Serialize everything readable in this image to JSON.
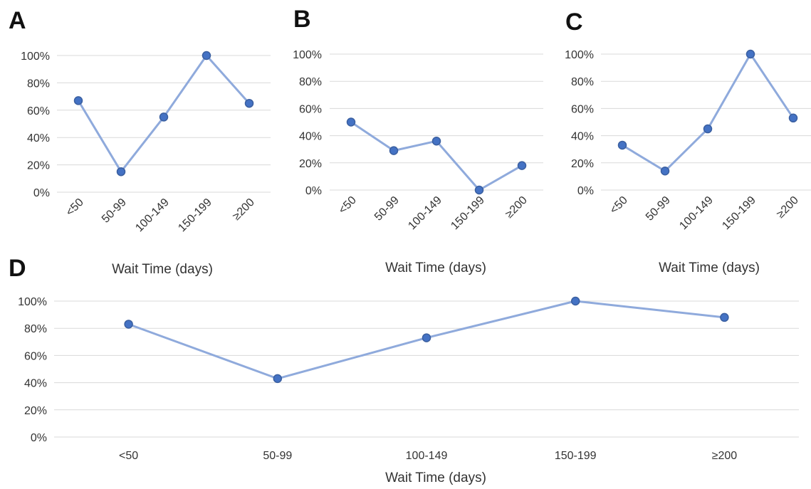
{
  "colors": {
    "line": "#8faadc",
    "marker": "#4472c4",
    "marker_stroke": "#3a5fa0",
    "grid": "#d9d9d9"
  },
  "chart_data": [
    {
      "panel": "A",
      "type": "line",
      "categories": [
        "<50",
        "50-99",
        "100-149",
        "150-199",
        "≥200"
      ],
      "values": [
        67,
        15,
        55,
        100,
        65
      ],
      "ylim": [
        0,
        100
      ],
      "yticks": [
        "0%",
        "20%",
        "40%",
        "60%",
        "80%",
        "100%"
      ],
      "xlabel": "Wait Time (days)",
      "ylabel": "",
      "grid": true
    },
    {
      "panel": "B",
      "type": "line",
      "categories": [
        "<50",
        "50-99",
        "100-149",
        "150-199",
        "≥200"
      ],
      "values": [
        50,
        29,
        36,
        0,
        18
      ],
      "ylim": [
        0,
        100
      ],
      "yticks": [
        "0%",
        "20%",
        "40%",
        "60%",
        "80%",
        "100%"
      ],
      "xlabel": "Wait Time (days)",
      "ylabel": "",
      "grid": true
    },
    {
      "panel": "C",
      "type": "line",
      "categories": [
        "<50",
        "50-99",
        "100-149",
        "150-199",
        "≥200"
      ],
      "values": [
        33,
        14,
        45,
        100,
        53
      ],
      "ylim": [
        0,
        100
      ],
      "yticks": [
        "0%",
        "20%",
        "40%",
        "60%",
        "80%",
        "100%"
      ],
      "xlabel": "Wait Time (days)",
      "ylabel": "",
      "grid": true
    },
    {
      "panel": "D",
      "type": "line",
      "categories": [
        "<50",
        "50-99",
        "100-149",
        "150-199",
        "≥200"
      ],
      "values": [
        83,
        43,
        73,
        100,
        88
      ],
      "ylim": [
        0,
        100
      ],
      "yticks": [
        "0%",
        "20%",
        "40%",
        "60%",
        "80%",
        "100%"
      ],
      "xlabel": "Wait Time (days)",
      "ylabel": "",
      "grid": true
    }
  ]
}
